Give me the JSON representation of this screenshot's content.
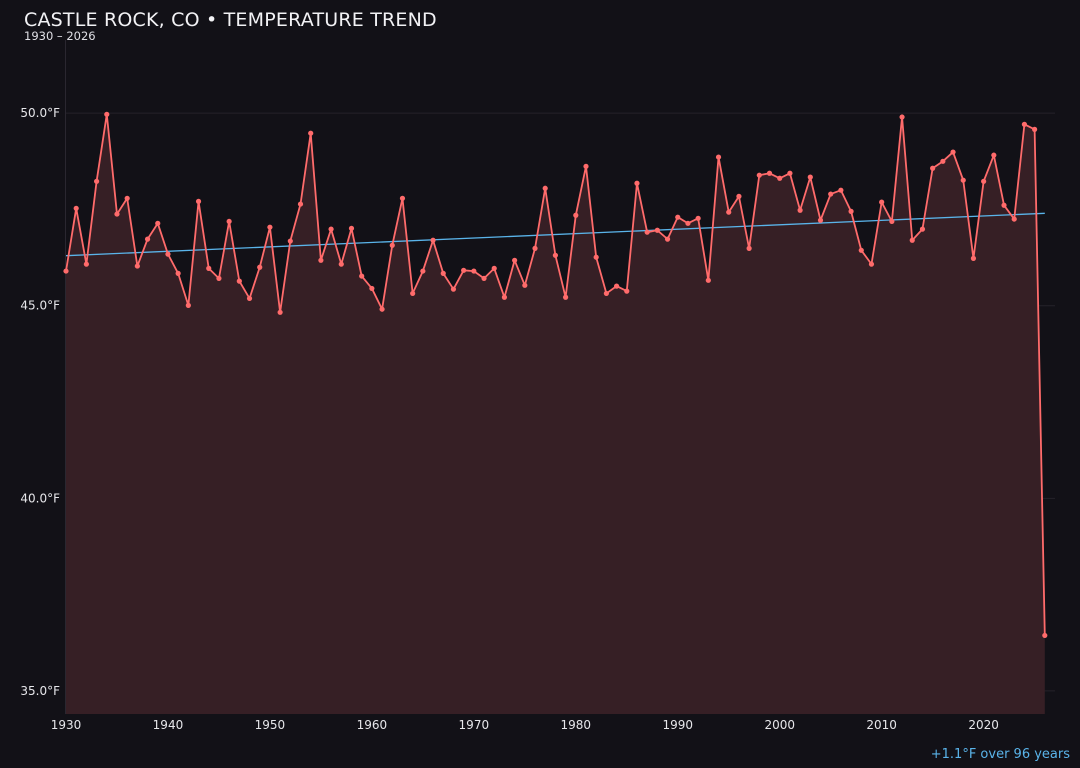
{
  "chart_data": {
    "type": "line",
    "title": "CASTLE ROCK, CO • TEMPERATURE TREND",
    "subtitle": "1930 – 2026",
    "annotation": "+1.1°F over 96 years",
    "xlabel": "",
    "ylabel": "",
    "xlim": [
      1930,
      2027
    ],
    "ylim": [
      34.4,
      51.9
    ],
    "x_ticks": [
      "1930",
      "1940",
      "1950",
      "1960",
      "1970",
      "1980",
      "1990",
      "2000",
      "2010",
      "2020"
    ],
    "y_ticks": [
      "35.0°F",
      "40.0°F",
      "45.0°F",
      "50.0°F"
    ],
    "y_tick_values": [
      35,
      40,
      45,
      50
    ],
    "grid": "horizontal",
    "colors": {
      "series": "#ff6b6b",
      "fill": "#361f25",
      "trend": "#5ab4ea",
      "background": "#121117"
    },
    "x": [
      1930,
      1931,
      1932,
      1933,
      1934,
      1935,
      1936,
      1937,
      1938,
      1939,
      1940,
      1941,
      1942,
      1943,
      1944,
      1945,
      1946,
      1947,
      1948,
      1949,
      1950,
      1951,
      1952,
      1953,
      1954,
      1955,
      1956,
      1957,
      1958,
      1959,
      1960,
      1961,
      1962,
      1963,
      1964,
      1965,
      1966,
      1967,
      1968,
      1969,
      1970,
      1971,
      1972,
      1973,
      1974,
      1975,
      1976,
      1977,
      1978,
      1979,
      1980,
      1981,
      1982,
      1983,
      1984,
      1985,
      1986,
      1987,
      1988,
      1989,
      1990,
      1991,
      1992,
      1993,
      1994,
      1995,
      1996,
      1997,
      1998,
      1999,
      2000,
      2001,
      2002,
      2003,
      2004,
      2005,
      2006,
      2007,
      2008,
      2009,
      2010,
      2011,
      2012,
      2013,
      2014,
      2015,
      2016,
      2017,
      2018,
      2019,
      2020,
      2021,
      2022,
      2023,
      2024,
      2025,
      2026
    ],
    "values": [
      45.9,
      47.53,
      46.08,
      48.23,
      49.97,
      47.38,
      47.79,
      46.03,
      46.73,
      47.14,
      46.34,
      45.84,
      45.01,
      47.71,
      45.97,
      45.71,
      47.19,
      45.64,
      45.19,
      46.0,
      47.04,
      44.83,
      46.68,
      47.64,
      49.48,
      46.18,
      46.99,
      46.08,
      47.01,
      45.77,
      45.45,
      44.91,
      46.57,
      47.79,
      45.32,
      45.9,
      46.7,
      45.84,
      45.43,
      45.92,
      45.9,
      45.71,
      45.97,
      45.22,
      46.18,
      45.53,
      46.49,
      48.05,
      46.31,
      45.22,
      47.35,
      48.62,
      46.26,
      45.32,
      45.51,
      45.38,
      48.18,
      46.91,
      46.96,
      46.73,
      47.3,
      47.14,
      47.27,
      45.66,
      48.86,
      47.43,
      47.84,
      46.49,
      48.39,
      48.44,
      48.31,
      48.44,
      47.48,
      48.34,
      47.22,
      47.9,
      48.0,
      47.45,
      46.44,
      46.08,
      47.69,
      47.19,
      49.9,
      46.7,
      46.99,
      48.57,
      48.75,
      48.99,
      48.26,
      46.23,
      48.23,
      48.91,
      47.61,
      47.25,
      49.71,
      49.58,
      36.44
    ],
    "trend": {
      "x": [
        1930,
        2026
      ],
      "y": [
        46.3,
        47.4
      ]
    }
  }
}
